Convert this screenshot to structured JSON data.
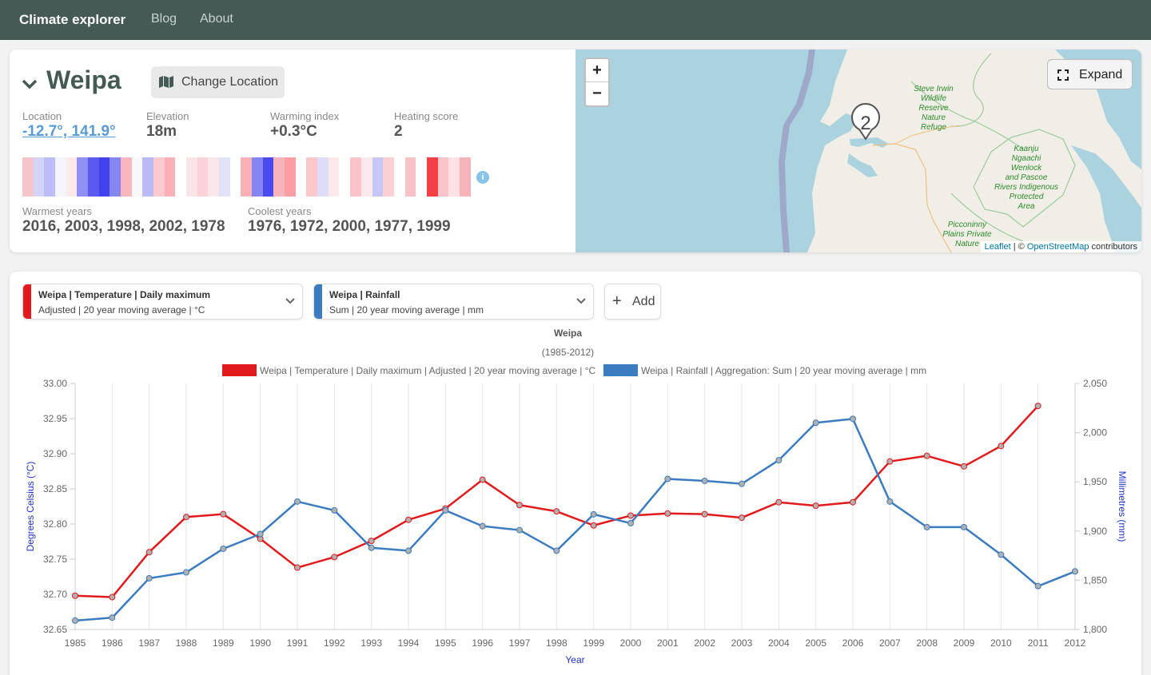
{
  "navbar": {
    "brand": "Climate explorer",
    "links": [
      "Blog",
      "About"
    ]
  },
  "location": {
    "name": "Weipa",
    "change_label": "Change Location",
    "stats": [
      {
        "label": "Location",
        "value": "-12.7°, 141.9°"
      },
      {
        "label": "Elevation",
        "value": "18m"
      },
      {
        "label": "Warming index",
        "value": "+0.3°C"
      },
      {
        "label": "Heating score",
        "value": "2"
      }
    ],
    "warmest_label": "Warmest years",
    "warmest_value": "2016, 2003, 1998, 2002, 1978",
    "coolest_label": "Coolest years",
    "coolest_value": "1976, 1972, 2000, 1977, 1999",
    "info_glyph": "i",
    "stripe_colors": [
      "#f6c4cb",
      "#d4d4f8",
      "#bcbcf6",
      "#f4f4fc",
      "#fbe9ec",
      "#8f8ff4",
      "#5a5af1",
      "#4141ee",
      "#8686f3",
      "#f8b6be",
      "#f8f8f9",
      "#babaf6",
      "#fcc9ce",
      "#fbafb6",
      "#ffffff",
      "#f9e4e8",
      "#fbd2d7",
      "#f9e7ec",
      "#e2e2f9",
      "#ffffff",
      "#fbb0b8",
      "#8484f3",
      "#4a4aef",
      "#f9b4bb",
      "#fb9da4",
      "#ffffff",
      "#fbc6cc",
      "#ddddf8",
      "#fde8eb",
      "#ffffff",
      "#fcc4ca",
      "#faeaed",
      "#c6c6f7",
      "#fbd0d5",
      "#ffffff",
      "#f8c2c9",
      "#ffffff",
      "#f43f45",
      "#fbc4ca",
      "#fde1e4",
      "#f8b2b9"
    ]
  },
  "map": {
    "zoom_in": "+",
    "zoom_out": "−",
    "expand_label": "Expand",
    "marker_count": "2",
    "labels": [
      "Steve Irwin",
      "Wildlife",
      "Reserve",
      "Nature",
      "Refuge",
      "Kaanju",
      "Ngaachi",
      "Wenlock",
      "and Pascoe",
      "Rivers Indigenous",
      "Protected",
      "Area",
      "Picconinny",
      "Plains Private",
      "Nature"
    ],
    "attribution_leaflet": "Leaflet",
    "attribution_sep": " | © ",
    "attribution_osm": "OpenStreetMap",
    "attribution_tail": " contributors"
  },
  "selectors": [
    {
      "title": "Weipa | Temperature | Daily maximum",
      "subtitle": "Adjusted | 20 year moving average | °C",
      "color": "#e31a1c"
    },
    {
      "title": "Weipa | Rainfall",
      "subtitle": "Sum | 20 year moving average | mm",
      "color": "#3b7bbf"
    }
  ],
  "add_label": "Add",
  "add_glyph": "+",
  "chart_data": {
    "type": "line",
    "title": "Weipa",
    "subtitle": "(1985-2012)",
    "xlabel": "Year",
    "ylabel_left": "Degrees Celsius (°C)",
    "ylabel_right": "Millimetres (mm)",
    "x": [
      1985,
      1986,
      1987,
      1988,
      1989,
      1990,
      1991,
      1992,
      1993,
      1994,
      1995,
      1996,
      1997,
      1998,
      1999,
      2000,
      2001,
      2002,
      2003,
      2004,
      2005,
      2006,
      2007,
      2008,
      2009,
      2010,
      2011,
      2012
    ],
    "ylim_left": [
      32.65,
      33.0
    ],
    "ylim_right": [
      1800,
      2050
    ],
    "yticks_left": [
      "33.00",
      "32.95",
      "32.90",
      "32.85",
      "32.80",
      "32.75",
      "32.70",
      "32.65"
    ],
    "yticks_right": [
      "2,050",
      "2,000",
      "1,950",
      "1,900",
      "1,850",
      "1,800"
    ],
    "legend_position": "top",
    "grid": "vertical",
    "series": [
      {
        "name": "Weipa | Temperature | Daily maximum | Adjusted | 20 year moving average | °C",
        "axis": "left",
        "color": "#e31a1c",
        "values": [
          32.698,
          32.696,
          32.76,
          32.81,
          32.814,
          32.779,
          32.738,
          32.753,
          32.776,
          32.806,
          32.822,
          32.863,
          32.827,
          32.818,
          32.798,
          32.812,
          32.815,
          32.814,
          32.809,
          32.831,
          32.826,
          32.831,
          32.889,
          32.897,
          32.882,
          32.911,
          32.968,
          null
        ]
      },
      {
        "name": "Weipa | Rainfall | Aggregation: Sum | 20 year moving average | mm",
        "axis": "right",
        "color": "#3b7bbf",
        "values": [
          1809,
          1812,
          1852,
          1858,
          1882,
          1897,
          1930,
          1921,
          1883,
          1880,
          1921,
          1905,
          1901,
          1880,
          1917,
          1908,
          1953,
          1951,
          1948,
          1972,
          2010,
          2014,
          1930,
          1904,
          1904,
          1876,
          1844,
          1859
        ]
      }
    ]
  }
}
